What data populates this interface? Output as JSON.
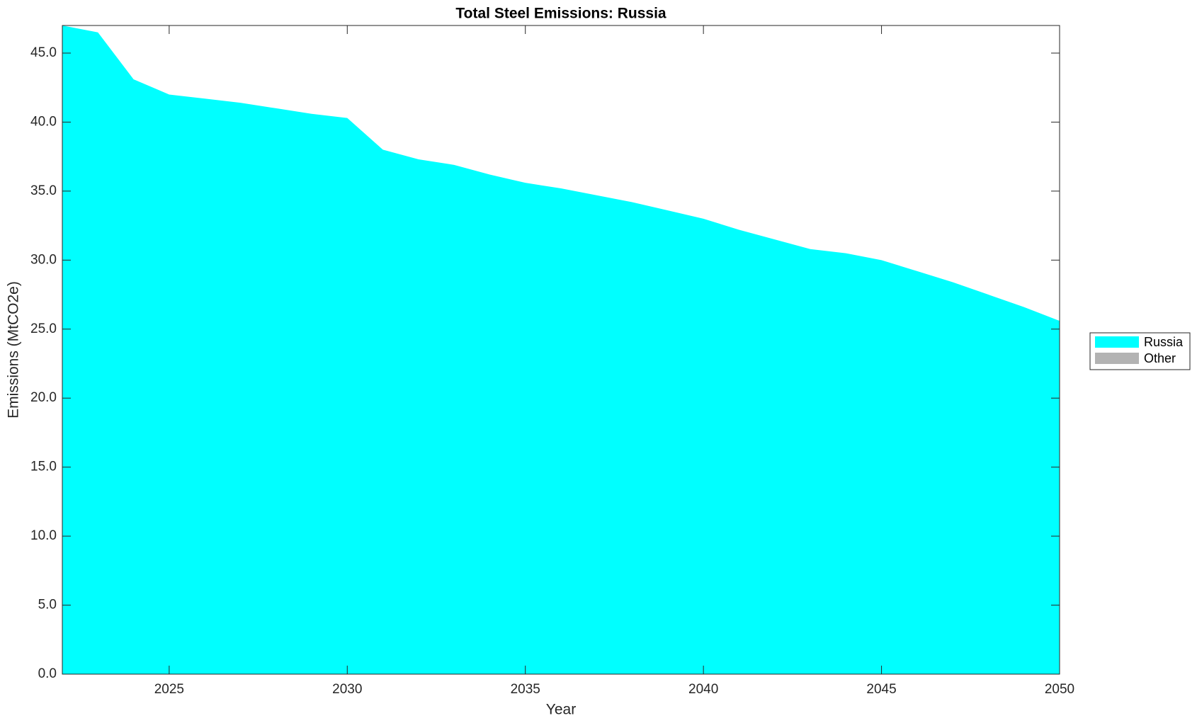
{
  "chart_data": {
    "type": "area",
    "stacked": true,
    "title": "Total Steel Emissions: Russia",
    "x_label": "Year",
    "y_label": "Emissions (MtCO2e)",
    "x": [
      2022,
      2023,
      2024,
      2025,
      2026,
      2027,
      2028,
      2029,
      2030,
      2031,
      2032,
      2033,
      2034,
      2035,
      2036,
      2037,
      2038,
      2039,
      2040,
      2041,
      2042,
      2043,
      2044,
      2045,
      2046,
      2047,
      2048,
      2049,
      2050
    ],
    "series": [
      {
        "name": "Russia",
        "color": "#00ffff",
        "values": [
          47.0,
          46.5,
          43.1,
          42.0,
          41.7,
          41.4,
          41.0,
          40.6,
          40.3,
          38.0,
          37.3,
          36.9,
          36.2,
          35.6,
          35.2,
          34.7,
          34.2,
          33.6,
          33.0,
          32.2,
          31.5,
          30.8,
          30.5,
          30.0,
          29.2,
          28.4,
          27.5,
          26.6,
          25.6
        ]
      },
      {
        "name": "Other",
        "color": "#b3b3b3",
        "values": [
          0,
          0,
          0,
          0,
          0,
          0,
          0,
          0,
          0,
          0,
          0,
          0,
          0,
          0,
          0,
          0,
          0,
          0,
          0,
          0,
          0,
          0,
          0,
          0,
          0,
          0,
          0,
          0,
          0
        ]
      }
    ],
    "xlim": [
      2022,
      2050
    ],
    "xticks": [
      2025,
      2030,
      2035,
      2040,
      2045,
      2050
    ],
    "ylim": [
      0,
      47
    ],
    "yticks": [
      {
        "value": 0,
        "label": "0.0"
      },
      {
        "value": 5,
        "label": "5.0"
      },
      {
        "value": 10,
        "label": "10.0"
      },
      {
        "value": 15,
        "label": "15.0"
      },
      {
        "value": 20,
        "label": "20.0"
      },
      {
        "value": 25,
        "label": "25.0"
      },
      {
        "value": 30,
        "label": "30.0"
      },
      {
        "value": 35,
        "label": "35.0"
      },
      {
        "value": 40,
        "label": "40.0"
      },
      {
        "value": 45,
        "label": "45.0"
      }
    ],
    "grid": false,
    "legend_position": "right"
  }
}
